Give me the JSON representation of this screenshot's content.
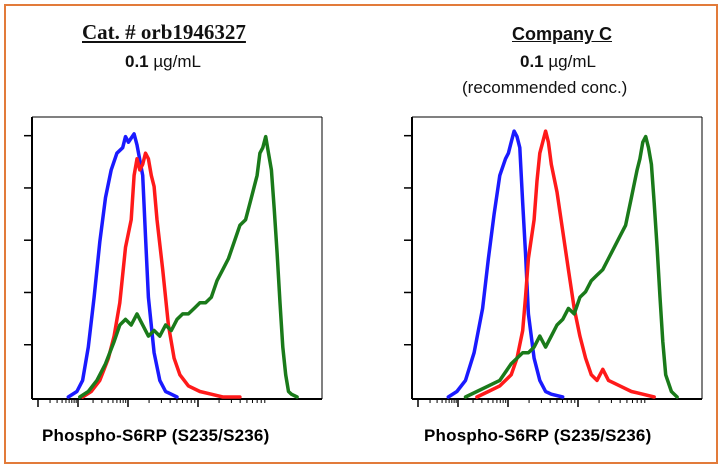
{
  "panels": [
    {
      "title": "Cat. # orb1946327",
      "conc_value": "0.1",
      "conc_unit": "µg/mL",
      "note": "",
      "xlabel": "Phospho-S6RP (S235/S236)"
    },
    {
      "title": "Company C",
      "conc_value": "0.1",
      "conc_unit": "µg/mL",
      "note": "(recommended conc.)",
      "xlabel": "Phospho-S6RP (S235/S236)"
    }
  ],
  "colors": {
    "frame": "#e27b3a",
    "blue": "#1a1aff",
    "red": "#ff1a1a",
    "green": "#1a7a1a"
  },
  "chart_data": [
    {
      "type": "area",
      "title": "Cat. # orb1946327",
      "xlabel": "Phospho-S6RP (S235/S236)",
      "ylabel": "",
      "xlim": [
        0,
        100
      ],
      "ylim": [
        0,
        100
      ],
      "x_scale": "log-like (fluorescence intensity), ticks unlabeled",
      "grid": false,
      "series": [
        {
          "color": "blue",
          "x": [
            12,
            15,
            17,
            19,
            21,
            23,
            25,
            27,
            29,
            31,
            32,
            33,
            35,
            36,
            38,
            39,
            40,
            42,
            44,
            46,
            48,
            50
          ],
          "y": [
            0,
            2,
            6,
            18,
            36,
            56,
            72,
            82,
            88,
            90,
            94,
            92,
            95,
            91,
            80,
            58,
            36,
            16,
            6,
            2,
            1,
            0
          ]
        },
        {
          "color": "red",
          "x": [
            17,
            20,
            23,
            26,
            28,
            30,
            32,
            34,
            35,
            36,
            37,
            38,
            39,
            40,
            41,
            42,
            43,
            45,
            47,
            49,
            51,
            54,
            58,
            62,
            66,
            72
          ],
          "y": [
            0,
            2,
            6,
            14,
            22,
            34,
            54,
            64,
            80,
            86,
            82,
            84,
            88,
            86,
            80,
            76,
            64,
            46,
            26,
            14,
            8,
            4,
            2,
            1,
            0,
            0
          ]
        },
        {
          "color": "green",
          "x": [
            16,
            19,
            22,
            25,
            28,
            30,
            32,
            34,
            36,
            38,
            40,
            42,
            44,
            46,
            48,
            50,
            52,
            54,
            56,
            58,
            60,
            62,
            64,
            66,
            68,
            70,
            72,
            74,
            76,
            78,
            79,
            80,
            81,
            82,
            83,
            84,
            85,
            86,
            87,
            88,
            89,
            90,
            92
          ],
          "y": [
            0,
            2,
            6,
            12,
            20,
            26,
            28,
            26,
            30,
            26,
            22,
            24,
            22,
            26,
            24,
            28,
            30,
            30,
            32,
            34,
            34,
            36,
            42,
            46,
            50,
            56,
            62,
            64,
            72,
            80,
            88,
            90,
            94,
            88,
            82,
            68,
            52,
            34,
            18,
            8,
            2,
            1,
            0
          ]
        }
      ]
    },
    {
      "type": "area",
      "title": "Company C",
      "xlabel": "Phospho-S6RP (S235/S236)",
      "ylabel": "",
      "xlim": [
        0,
        100
      ],
      "ylim": [
        0,
        100
      ],
      "x_scale": "log-like (fluorescence intensity), ticks unlabeled",
      "grid": false,
      "series": [
        {
          "color": "blue",
          "x": [
            12,
            15,
            18,
            21,
            24,
            26,
            28,
            30,
            32,
            33,
            34,
            35,
            36,
            37,
            38,
            39,
            40,
            42,
            44,
            46,
            48,
            52
          ],
          "y": [
            0,
            2,
            6,
            16,
            32,
            50,
            66,
            80,
            86,
            88,
            92,
            96,
            94,
            90,
            70,
            52,
            30,
            14,
            6,
            2,
            1,
            0
          ]
        },
        {
          "color": "red",
          "x": [
            22,
            26,
            30,
            34,
            36,
            38,
            39,
            40,
            42,
            43,
            44,
            45,
            46,
            47,
            48,
            50,
            52,
            54,
            56,
            58,
            60,
            62,
            64,
            66,
            68,
            72,
            76,
            80,
            84
          ],
          "y": [
            0,
            2,
            4,
            8,
            14,
            24,
            36,
            50,
            64,
            78,
            88,
            92,
            96,
            92,
            84,
            74,
            60,
            46,
            32,
            22,
            14,
            8,
            6,
            10,
            6,
            4,
            2,
            1,
            0
          ]
        },
        {
          "color": "green",
          "x": [
            18,
            22,
            26,
            30,
            34,
            38,
            40,
            42,
            44,
            46,
            48,
            50,
            52,
            54,
            56,
            58,
            60,
            62,
            64,
            66,
            68,
            70,
            72,
            74,
            76,
            78,
            79,
            80,
            81,
            82,
            83,
            84,
            85,
            86,
            87,
            88,
            90,
            92
          ],
          "y": [
            0,
            2,
            4,
            6,
            12,
            16,
            16,
            18,
            22,
            18,
            22,
            26,
            28,
            32,
            30,
            36,
            38,
            42,
            44,
            46,
            50,
            54,
            58,
            62,
            72,
            82,
            86,
            92,
            94,
            90,
            84,
            70,
            54,
            36,
            20,
            8,
            2,
            0
          ]
        }
      ]
    }
  ]
}
